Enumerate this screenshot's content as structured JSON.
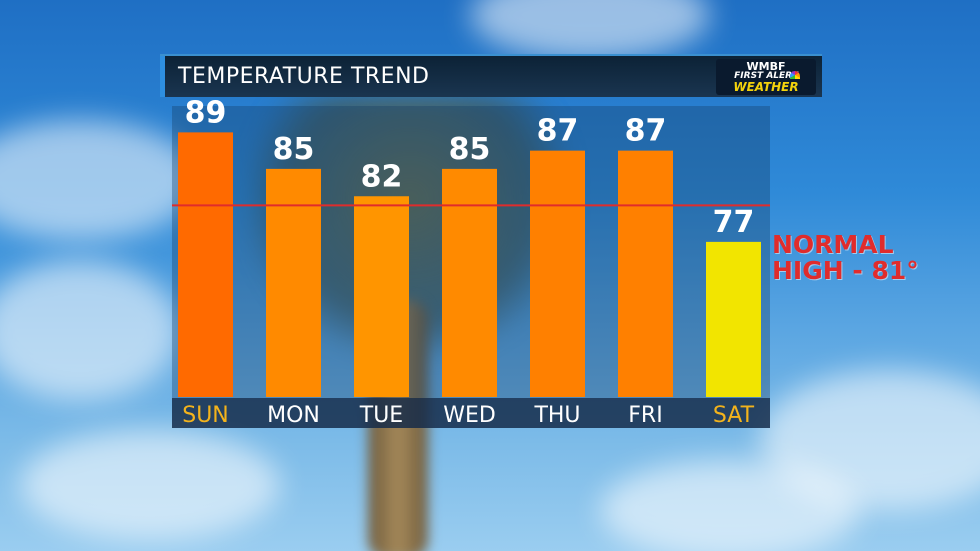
{
  "header": {
    "title": "TEMPERATURE TREND",
    "logo": {
      "line1": "WMBF",
      "line2": "FIRST ALERT",
      "line3": "WEATHER"
    }
  },
  "normal_high": {
    "value": 81,
    "label_line1": "NORMAL",
    "label_line2": "HIGH - 81°"
  },
  "colors": {
    "hot_bar": "#ff6a00",
    "warm_bar": "#ff8a00",
    "mild_bar": "#ff9500",
    "cool_bar": "#f2e500",
    "normal_line": "#e02c2c",
    "weekend_label": "#f3b31c",
    "weekday_label": "#ffffff"
  },
  "chart_data": {
    "type": "bar",
    "title": "TEMPERATURE TREND",
    "categories": [
      "SUN",
      "MON",
      "TUE",
      "WED",
      "THU",
      "FRI",
      "SAT"
    ],
    "values": [
      89,
      85,
      82,
      85,
      87,
      87,
      77
    ],
    "bar_colors": [
      "#ff6a00",
      "#ff8a00",
      "#ff9500",
      "#ff8a00",
      "#ff8000",
      "#ff8000",
      "#f2e500"
    ],
    "label_colors": [
      "#f3b31c",
      "#ffffff",
      "#ffffff",
      "#ffffff",
      "#ffffff",
      "#ffffff",
      "#f3b31c"
    ],
    "reference_line": {
      "value": 81,
      "label": "NORMAL HIGH - 81°"
    },
    "ylim": [
      60,
      92
    ],
    "grid": false,
    "legend": "none"
  }
}
